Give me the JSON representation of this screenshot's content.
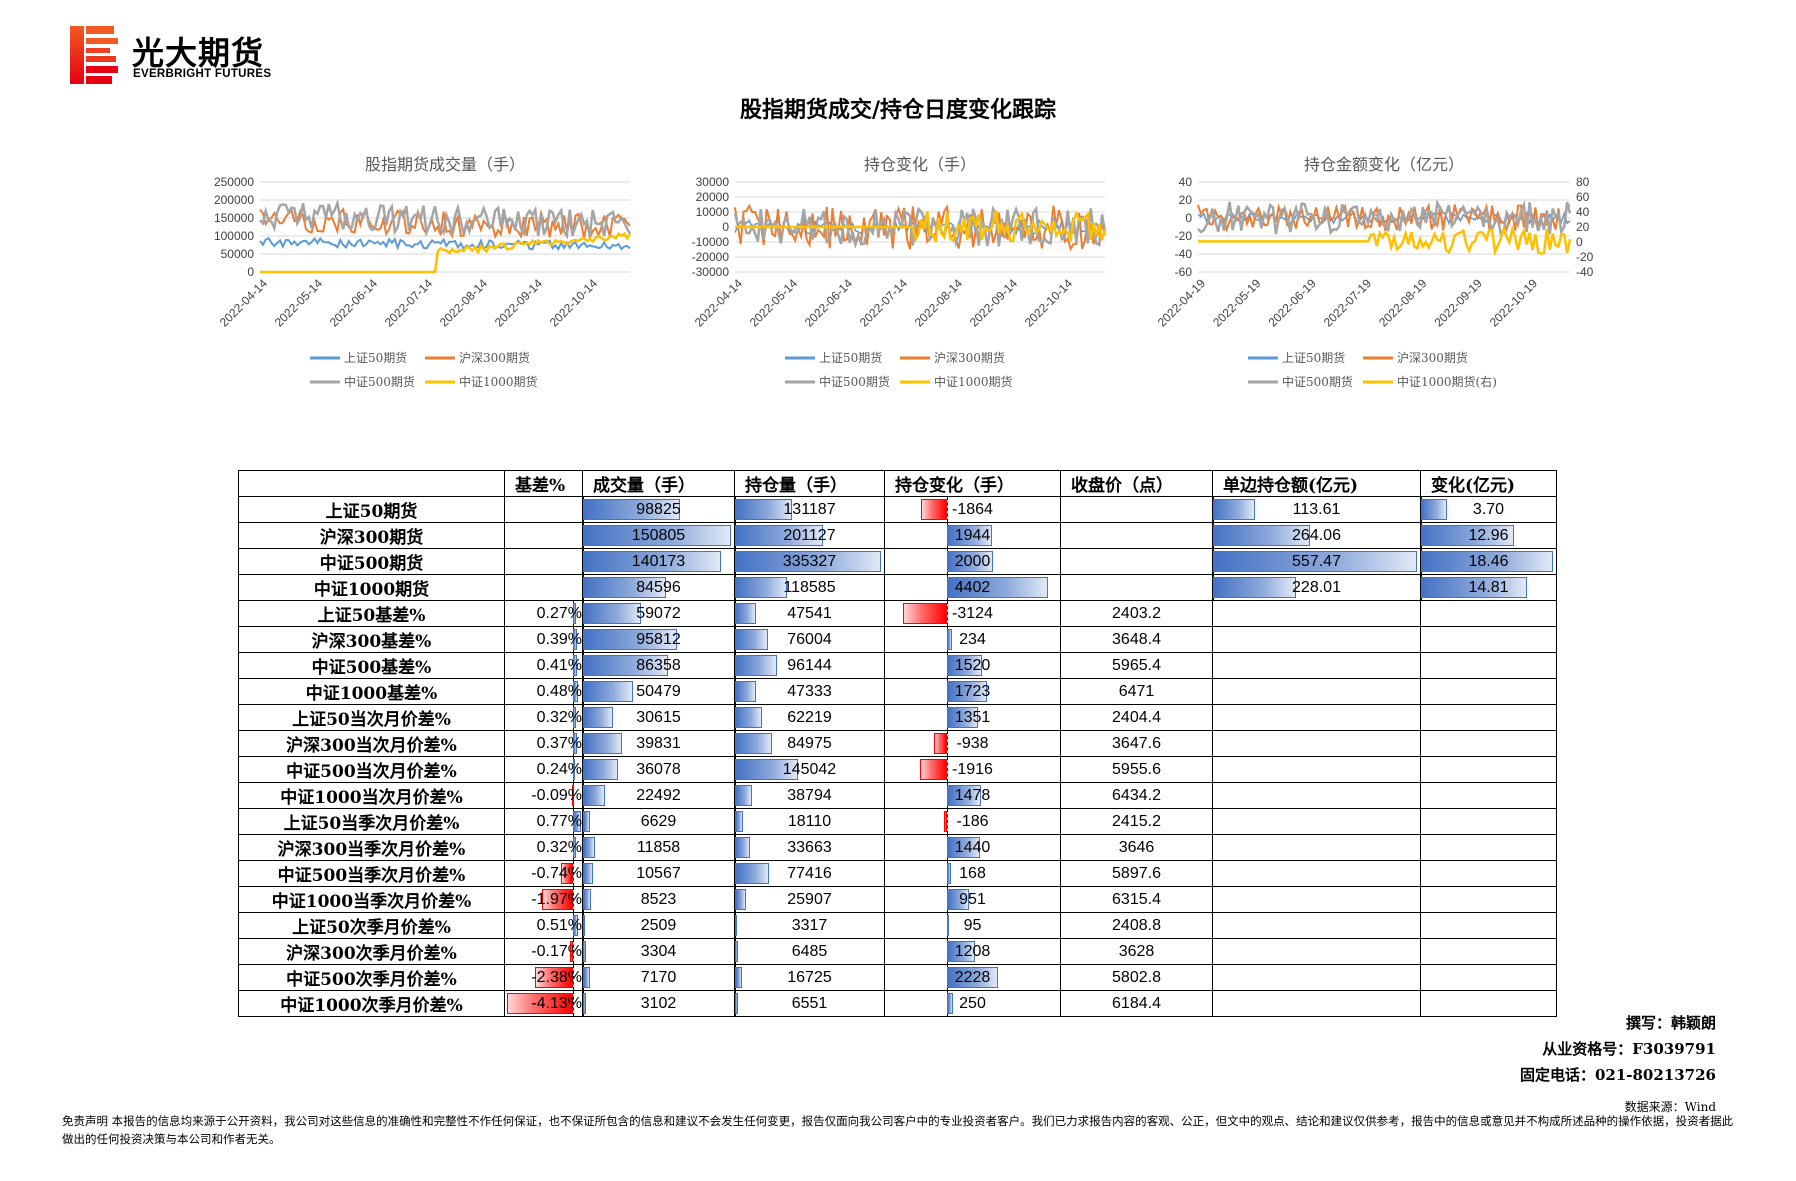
{
  "header": {
    "logo_cn": "光大期货",
    "logo_en": "EVERBRIGHT FUTURES",
    "title": "股指期货成交/持仓日度变化跟踪"
  },
  "charts": [
    {
      "title": "股指期货成交量（手）",
      "yticks_left": [
        "250000",
        "200000",
        "150000",
        "100000",
        "50000",
        "0"
      ],
      "xticks": [
        "2022-04-14",
        "2022-05-14",
        "2022-06-14",
        "2022-07-14",
        "2022-08-14",
        "2022-09-14",
        "2022-10-14"
      ],
      "legend": [
        "上证50期货",
        "沪深300期货",
        "中证500期货",
        "中证1000期货"
      ]
    },
    {
      "title": "持仓变化（手）",
      "yticks_left": [
        "30000",
        "20000",
        "10000",
        "0",
        "-10000",
        "-20000",
        "-30000"
      ],
      "xticks": [
        "2022-04-14",
        "2022-05-14",
        "2022-06-14",
        "2022-07-14",
        "2022-08-14",
        "2022-09-14",
        "2022-10-14"
      ],
      "legend": [
        "上证50期货",
        "沪深300期货",
        "中证500期货",
        "中证1000期货"
      ]
    },
    {
      "title": "持仓金额变化（亿元）",
      "yticks_left": [
        "40",
        "20",
        "0",
        "-20",
        "-40",
        "-60"
      ],
      "yticks_right": [
        "80",
        "60",
        "40",
        "20",
        "0",
        "-20",
        "-40"
      ],
      "xticks": [
        "2022-04-19",
        "2022-05-19",
        "2022-06-19",
        "2022-07-19",
        "2022-08-19",
        "2022-09-19",
        "2022-10-19"
      ],
      "legend": [
        "上证50期货",
        "沪深300期货",
        "中证500期货",
        "中证1000期货(右)"
      ]
    }
  ],
  "colors": {
    "s50": "#5b9bd5",
    "s300": "#ed7d31",
    "s500": "#a5a5a5",
    "s1000": "#ffc000"
  },
  "table": {
    "headers": [
      "",
      "基差%",
      "成交量（手）",
      "持仓量（手）",
      "持仓变化（手）",
      "收盘价（点）",
      "单边持仓额(亿元)",
      "变化(亿元)"
    ],
    "rows": [
      {
        "label": "上证50期货",
        "basis": "",
        "vol": "98825",
        "oi": "131187",
        "chg": "-1864",
        "close": "",
        "amt": "113.61",
        "amtchg": "3.70"
      },
      {
        "label": "沪深300期货",
        "basis": "",
        "vol": "150805",
        "oi": "201127",
        "chg": "1944",
        "close": "",
        "amt": "264.06",
        "amtchg": "12.96"
      },
      {
        "label": "中证500期货",
        "basis": "",
        "vol": "140173",
        "oi": "335327",
        "chg": "2000",
        "close": "",
        "amt": "557.47",
        "amtchg": "18.46"
      },
      {
        "label": "中证1000期货",
        "basis": "",
        "vol": "84596",
        "oi": "118585",
        "chg": "4402",
        "close": "",
        "amt": "228.01",
        "amtchg": "14.81"
      },
      {
        "label": "上证50基差%",
        "basis": "0.27%",
        "vol": "59072",
        "oi": "47541",
        "chg": "-3124",
        "close": "2403.2",
        "amt": "",
        "amtchg": ""
      },
      {
        "label": "沪深300基差%",
        "basis": "0.39%",
        "vol": "95812",
        "oi": "76004",
        "chg": "234",
        "close": "3648.4",
        "amt": "",
        "amtchg": ""
      },
      {
        "label": "中证500基差%",
        "basis": "0.41%",
        "vol": "86358",
        "oi": "96144",
        "chg": "1520",
        "close": "5965.4",
        "amt": "",
        "amtchg": ""
      },
      {
        "label": "中证1000基差%",
        "basis": "0.48%",
        "vol": "50479",
        "oi": "47333",
        "chg": "1723",
        "close": "6471",
        "amt": "",
        "amtchg": ""
      },
      {
        "label": "上证50当次月价差%",
        "basis": "0.32%",
        "vol": "30615",
        "oi": "62219",
        "chg": "1351",
        "close": "2404.4",
        "amt": "",
        "amtchg": ""
      },
      {
        "label": "沪深300当次月价差%",
        "basis": "0.37%",
        "vol": "39831",
        "oi": "84975",
        "chg": "-938",
        "close": "3647.6",
        "amt": "",
        "amtchg": ""
      },
      {
        "label": "中证500当次月价差%",
        "basis": "0.24%",
        "vol": "36078",
        "oi": "145042",
        "chg": "-1916",
        "close": "5955.6",
        "amt": "",
        "amtchg": ""
      },
      {
        "label": "中证1000当次月价差%",
        "basis": "-0.09%",
        "vol": "22492",
        "oi": "38794",
        "chg": "1478",
        "close": "6434.2",
        "amt": "",
        "amtchg": ""
      },
      {
        "label": "上证50当季次月价差%",
        "basis": "0.77%",
        "vol": "6629",
        "oi": "18110",
        "chg": "-186",
        "close": "2415.2",
        "amt": "",
        "amtchg": ""
      },
      {
        "label": "沪深300当季次月价差%",
        "basis": "0.32%",
        "vol": "11858",
        "oi": "33663",
        "chg": "1440",
        "close": "3646",
        "amt": "",
        "amtchg": ""
      },
      {
        "label": "中证500当季次月价差%",
        "basis": "-0.74%",
        "vol": "10567",
        "oi": "77416",
        "chg": "168",
        "close": "5897.6",
        "amt": "",
        "amtchg": ""
      },
      {
        "label": "中证1000当季次月价差%",
        "basis": "-1.97%",
        "vol": "8523",
        "oi": "25907",
        "chg": "951",
        "close": "6315.4",
        "amt": "",
        "amtchg": ""
      },
      {
        "label": "上证50次季月价差%",
        "basis": "0.51%",
        "vol": "2509",
        "oi": "3317",
        "chg": "95",
        "close": "2408.8",
        "amt": "",
        "amtchg": ""
      },
      {
        "label": "沪深300次季月价差%",
        "basis": "-0.17%",
        "vol": "3304",
        "oi": "6485",
        "chg": "1208",
        "close": "3628",
        "amt": "",
        "amtchg": ""
      },
      {
        "label": "中证500次季月价差%",
        "basis": "-2.38%",
        "vol": "7170",
        "oi": "16725",
        "chg": "2228",
        "close": "5802.8",
        "amt": "",
        "amtchg": ""
      },
      {
        "label": "中证1000次季月价差%",
        "basis": "-4.13%",
        "vol": "3102",
        "oi": "6551",
        "chg": "250",
        "close": "6184.4",
        "amt": "",
        "amtchg": ""
      }
    ]
  },
  "footer": {
    "author": "撰写：韩颖朗",
    "license": "从业资格号：F3039791",
    "phone": "固定电话：021-80213726",
    "source": "数据来源：Wind",
    "disclaimer": "免责声明    本报告的信息均来源于公开资料，我公司对这些信息的准确性和完整性不作任何保证，也不保证所包含的信息和建议不会发生任何变更，报告仅面向我公司客户中的专业投资者客户。我们已力求报告内容的客观、公正，但文中的观点、结论和建议仅供参考，报告中的信息或意见并不构成所述品种的操作依据，投资者据此做出的任何投资决策与本公司和作者无关。"
  }
}
